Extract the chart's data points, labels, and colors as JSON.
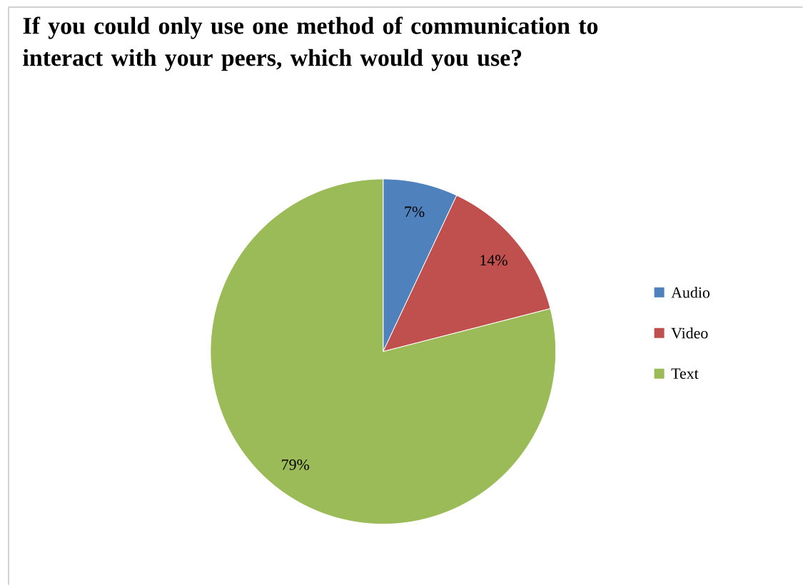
{
  "chart_data": {
    "type": "pie",
    "title": "If you could only use one method of communication to interact with your peers, which would you use?",
    "categories": [
      "Audio",
      "Video",
      "Text"
    ],
    "values": [
      7,
      14,
      79
    ],
    "value_labels": [
      "7%",
      "14%",
      "79%"
    ],
    "colors": [
      "#4f81bd",
      "#c0504d",
      "#9bbb59"
    ],
    "legend": "right"
  }
}
